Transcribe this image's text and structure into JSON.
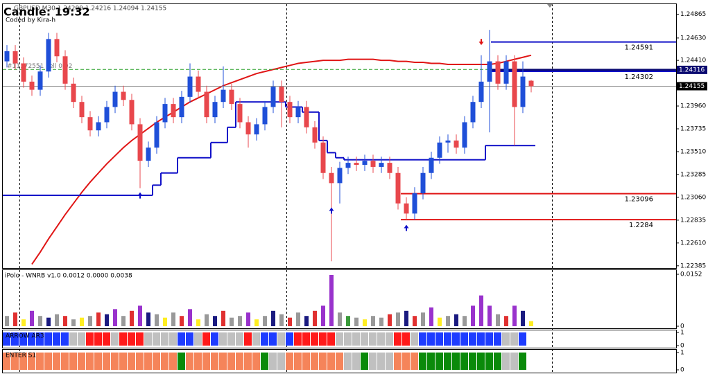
{
  "chart_data": [
    {
      "type": "candlestick",
      "title": "Candle: 19:32",
      "subtitle": "GBPUSD,M30 1.24209 1.24216 1.24094 1.24155",
      "annotations": [
        "Coded by Kira-h"
      ],
      "up_color": "#1f4fd8",
      "down_color": "#e8474c",
      "open": [
        1.244,
        1.245,
        1.2438,
        1.242,
        1.2412,
        1.243,
        1.2462,
        1.2445,
        1.2418,
        1.24,
        1.2385,
        1.2372,
        1.238,
        1.2395,
        1.241,
        1.2402,
        1.2378,
        1.2342,
        1.2355,
        1.238,
        1.2398,
        1.2385,
        1.2405,
        1.2425,
        1.241,
        1.2385,
        1.24,
        1.2412,
        1.2398,
        1.238,
        1.2368,
        1.2378,
        1.2395,
        1.2415,
        1.24,
        1.2385,
        1.2395,
        1.2375,
        1.236,
        1.233,
        1.232,
        1.2335,
        1.234,
        1.2338,
        1.2342,
        1.2336,
        1.234,
        1.233,
        1.23,
        1.229,
        1.231,
        1.233,
        1.2345,
        1.236,
        1.2362,
        1.2355,
        1.238,
        1.24,
        1.242,
        1.244,
        1.2418,
        1.244,
        1.2395,
        1.24209
      ],
      "high": [
        1.2456,
        1.2456,
        1.2444,
        1.2426,
        1.2436,
        1.2468,
        1.2468,
        1.2451,
        1.2424,
        1.2406,
        1.2391,
        1.2386,
        1.2401,
        1.2416,
        1.2416,
        1.2408,
        1.2384,
        1.2361,
        1.2386,
        1.2404,
        1.2404,
        1.2411,
        1.2438,
        1.2431,
        1.2416,
        1.2406,
        1.2435,
        1.2418,
        1.2404,
        1.2386,
        1.2384,
        1.2401,
        1.2421,
        1.2421,
        1.2406,
        1.2401,
        1.2401,
        1.2381,
        1.2366,
        1.2336,
        1.2341,
        1.2346,
        1.2346,
        1.2348,
        1.2348,
        1.2346,
        1.2346,
        1.2336,
        1.2306,
        1.2316,
        1.2336,
        1.2351,
        1.2366,
        1.2368,
        1.2368,
        1.2386,
        1.2406,
        1.2446,
        1.2471,
        1.2446,
        1.2446,
        1.2446,
        1.244,
        1.24216
      ],
      "low": [
        1.2434,
        1.2432,
        1.2414,
        1.2406,
        1.2406,
        1.2424,
        1.2439,
        1.2412,
        1.2394,
        1.2379,
        1.2366,
        1.2366,
        1.2374,
        1.2389,
        1.2396,
        1.2372,
        1.2315,
        1.2336,
        1.2349,
        1.2374,
        1.2379,
        1.2379,
        1.2399,
        1.2404,
        1.2379,
        1.2379,
        1.2394,
        1.2392,
        1.2374,
        1.2355,
        1.2362,
        1.2372,
        1.2389,
        1.2375,
        1.2379,
        1.2379,
        1.2369,
        1.2354,
        1.2324,
        1.2243,
        1.23,
        1.2329,
        1.2332,
        1.2332,
        1.233,
        1.233,
        1.2324,
        1.2294,
        1.2284,
        1.2284,
        1.2304,
        1.2324,
        1.2339,
        1.235,
        1.2349,
        1.2349,
        1.2374,
        1.2394,
        1.237,
        1.2412,
        1.2412,
        1.2357,
        1.2389,
        1.24094
      ],
      "close": [
        1.245,
        1.2438,
        1.242,
        1.2412,
        1.243,
        1.2462,
        1.2445,
        1.2418,
        1.24,
        1.2385,
        1.2372,
        1.238,
        1.2395,
        1.241,
        1.2402,
        1.2378,
        1.2342,
        1.2355,
        1.238,
        1.2398,
        1.2385,
        1.2405,
        1.2425,
        1.241,
        1.2385,
        1.24,
        1.2412,
        1.2398,
        1.238,
        1.2368,
        1.2378,
        1.2395,
        1.2415,
        1.24,
        1.2385,
        1.2395,
        1.2375,
        1.236,
        1.233,
        1.232,
        1.2335,
        1.234,
        1.2338,
        1.2342,
        1.2336,
        1.234,
        1.233,
        1.23,
        1.229,
        1.231,
        1.233,
        1.2345,
        1.236,
        1.2362,
        1.2355,
        1.238,
        1.24,
        1.242,
        1.244,
        1.2418,
        1.244,
        1.2395,
        1.2425,
        1.24155
      ],
      "ma": {
        "color": "#e01515",
        "values": [
          null,
          null,
          null,
          1.224,
          1.2252,
          1.2265,
          1.2277,
          1.2289,
          1.23,
          1.2311,
          1.2321,
          1.233,
          1.2339,
          1.2347,
          1.2355,
          1.2362,
          1.2368,
          1.2374,
          1.238,
          1.2385,
          1.239,
          1.2395,
          1.24,
          1.2404,
          1.2408,
          1.2412,
          1.2416,
          1.2419,
          1.2422,
          1.2425,
          1.2428,
          1.243,
          1.2432,
          1.2434,
          1.2436,
          1.2438,
          1.2439,
          1.244,
          1.2441,
          1.2441,
          1.2441,
          1.2442,
          1.2442,
          1.2442,
          1.2442,
          1.2441,
          1.2441,
          1.244,
          1.244,
          1.2439,
          1.2439,
          1.2438,
          1.2438,
          1.2437,
          1.2437,
          1.2437,
          1.2437,
          1.2437,
          1.2437,
          1.2438,
          1.244,
          1.2442,
          1.2444,
          1.2446
        ]
      },
      "stop": {
        "color": "#1010c8",
        "values": [
          1.2308,
          1.2308,
          1.2308,
          1.2308,
          1.2308,
          1.2308,
          1.2308,
          1.2308,
          1.2308,
          1.2308,
          1.2308,
          1.2308,
          1.2308,
          1.2308,
          1.2308,
          1.2308,
          1.2308,
          1.2308,
          1.2318,
          1.233,
          1.233,
          1.2345,
          1.2345,
          1.2345,
          1.2345,
          1.236,
          1.236,
          1.2375,
          1.24,
          1.24,
          1.24,
          1.24,
          1.24,
          1.24,
          1.2395,
          1.2395,
          1.239,
          1.239,
          1.2362,
          1.235,
          1.2345,
          1.2343,
          1.2343,
          1.2343,
          1.2343,
          1.2343,
          1.2343,
          1.2343,
          1.2343,
          1.2343,
          1.2343,
          1.2343,
          1.2343,
          1.2343,
          1.2343,
          1.2343,
          1.2343,
          1.2343,
          1.2357,
          1.2357,
          1.2357,
          1.2357,
          1.2357,
          1.2357
        ]
      },
      "buy_arrows": {
        "color": "#1010c8",
        "values": [
          null,
          null,
          null,
          null,
          null,
          null,
          null,
          null,
          null,
          null,
          null,
          null,
          null,
          null,
          null,
          null,
          1.2311,
          null,
          null,
          null,
          null,
          null,
          null,
          null,
          null,
          null,
          null,
          null,
          null,
          null,
          null,
          null,
          null,
          null,
          null,
          null,
          null,
          null,
          null,
          1.2296,
          null,
          null,
          null,
          null,
          null,
          null,
          null,
          null,
          1.2279,
          null,
          null,
          null,
          null,
          null,
          null,
          null,
          null,
          null,
          null,
          null,
          null,
          null,
          null,
          null
        ]
      },
      "sell_arrows": {
        "color": "#e01515",
        "values": [
          null,
          null,
          null,
          null,
          null,
          null,
          null,
          null,
          null,
          null,
          null,
          null,
          null,
          null,
          null,
          null,
          null,
          null,
          null,
          null,
          null,
          null,
          null,
          null,
          null,
          null,
          null,
          null,
          null,
          null,
          null,
          null,
          null,
          null,
          null,
          null,
          null,
          null,
          null,
          null,
          null,
          null,
          null,
          null,
          null,
          null,
          null,
          null,
          null,
          null,
          null,
          null,
          null,
          null,
          null,
          null,
          null,
          1.2456,
          null,
          null,
          null,
          null,
          null,
          null
        ]
      },
      "levels": [
        {
          "value": 1.24591,
          "label": "1.24591",
          "color": "#1010c8"
        },
        {
          "value": 1.24302,
          "label": "1.24302",
          "color": "#1010c8"
        },
        {
          "value": 1.23096,
          "label": "1.23096",
          "color": "#e01515"
        },
        {
          "value": 1.2284,
          "label": "1.2284",
          "color": "#e01515"
        }
      ],
      "order_line": {
        "value": 1.2432,
        "label": "#11172551 sell 0.02",
        "color": "#2aa02a"
      },
      "price_tags": [
        {
          "value": 1.24316,
          "label": "1.24316",
          "color": "#0a0a70"
        },
        {
          "value": 1.24155,
          "label": "1.24155",
          "color": "#000000"
        }
      ],
      "ylim": [
        1.2237,
        1.2495
      ],
      "yticks": [
        {
          "value": 1.24865,
          "label": "1.24865"
        },
        {
          "value": 1.2463,
          "label": "1.24630"
        },
        {
          "value": 1.2441,
          "label": "1.24410"
        },
        {
          "value": 1.2396,
          "label": "1.23960"
        },
        {
          "value": 1.23735,
          "label": "1.23735"
        },
        {
          "value": 1.2351,
          "label": "1.23510"
        },
        {
          "value": 1.23285,
          "label": "1.23285"
        },
        {
          "value": 1.2306,
          "label": "1.23060"
        },
        {
          "value": 1.22835,
          "label": "1.22835"
        },
        {
          "value": 1.2261,
          "label": "1.22610"
        },
        {
          "value": 1.22385,
          "label": "1.22385"
        }
      ],
      "grid": false
    },
    {
      "type": "bar",
      "title": "iPolo - WNRB v1.0 0.0012 0.0000 0.0038",
      "values": [
        0.003,
        0.004,
        0.002,
        0.0045,
        0.003,
        0.0025,
        0.0035,
        0.003,
        0.002,
        0.0025,
        0.003,
        0.004,
        0.0035,
        0.005,
        0.003,
        0.0045,
        0.006,
        0.004,
        0.0035,
        0.0025,
        0.004,
        0.003,
        0.005,
        0.002,
        0.0035,
        0.003,
        0.0045,
        0.0025,
        0.003,
        0.004,
        0.002,
        0.003,
        0.0045,
        0.0035,
        0.0025,
        0.004,
        0.003,
        0.0045,
        0.006,
        0.015,
        0.004,
        0.003,
        0.0025,
        0.002,
        0.003,
        0.0025,
        0.0035,
        0.004,
        0.0045,
        0.003,
        0.004,
        0.0055,
        0.0025,
        0.003,
        0.0035,
        0.003,
        0.006,
        0.009,
        0.006,
        0.0035,
        0.003,
        0.006,
        0.0045,
        0.0015
      ],
      "colors": [
        "#999999",
        "#e03030",
        "#ffee22",
        "#9932cc",
        "#999999",
        "#1a1a80",
        "#999999",
        "#e03030",
        "#999999",
        "#ffee22",
        "#999999",
        "#e03030",
        "#1a1a80",
        "#9932cc",
        "#999999",
        "#e03030",
        "#9932cc",
        "#1a1a80",
        "#999999",
        "#ffee22",
        "#999999",
        "#e03030",
        "#9932cc",
        "#ffee22",
        "#999999",
        "#1a1a80",
        "#e03030",
        "#999999",
        "#999999",
        "#9932cc",
        "#ffee22",
        "#999999",
        "#1a1a80",
        "#999999",
        "#e03030",
        "#999999",
        "#1a1a80",
        "#e03030",
        "#9932cc",
        "#9932cc",
        "#999999",
        "#3a9a3a",
        "#999999",
        "#ffee22",
        "#999999",
        "#999999",
        "#e03030",
        "#999999",
        "#1a1a80",
        "#e03030",
        "#999999",
        "#9932cc",
        "#ffee22",
        "#999999",
        "#1a1a80",
        "#999999",
        "#9932cc",
        "#9932cc",
        "#9932cc",
        "#999999",
        "#e03030",
        "#9932cc",
        "#1a1a80",
        "#ffee22"
      ],
      "ylim": [
        0,
        0.0152
      ],
      "yticks": [
        {
          "value": 0.0152,
          "label": "0.0152"
        },
        0
      ]
    },
    {
      "type": "blocks",
      "title": "ARROW AR3",
      "values": [
        1,
        1,
        1,
        1,
        1,
        1,
        1,
        1,
        1,
        1,
        1,
        1,
        1,
        1,
        1,
        1,
        1,
        1,
        1,
        1,
        1,
        1,
        1,
        1,
        1,
        1,
        1,
        1,
        1,
        1,
        1,
        1,
        1,
        1,
        1,
        1,
        1,
        1,
        1,
        1,
        1,
        1,
        1,
        1,
        1,
        1,
        1,
        1,
        1,
        1,
        1,
        1,
        1,
        1,
        1,
        1,
        1,
        1,
        1,
        1,
        1,
        1,
        1,
        null
      ],
      "colors": [
        "#1e3cff",
        "#1e3cff",
        "#1e3cff",
        "#1e3cff",
        "#1e3cff",
        "#1e3cff",
        "#1e3cff",
        "#1e3cff",
        "#c0c0c0",
        "#c0c0c0",
        "#ff1a1a",
        "#ff1a1a",
        "#ff1a1a",
        "#c0c0c0",
        "#ff1a1a",
        "#ff1a1a",
        "#ff1a1a",
        "#c0c0c0",
        "#c0c0c0",
        "#c0c0c0",
        "#c0c0c0",
        "#1e3cff",
        "#1e3cff",
        "#c0c0c0",
        "#ff1a1a",
        "#1e3cff",
        "#c0c0c0",
        "#c0c0c0",
        "#c0c0c0",
        "#ff1a1a",
        "#c0c0c0",
        "#1e3cff",
        "#1e3cff",
        "#c0c0c0",
        "#1e3cff",
        "#ff1a1a",
        "#ff1a1a",
        "#ff1a1a",
        "#ff1a1a",
        "#ff1a1a",
        "#c0c0c0",
        "#c0c0c0",
        "#c0c0c0",
        "#c0c0c0",
        "#c0c0c0",
        "#c0c0c0",
        "#c0c0c0",
        "#ff1a1a",
        "#ff1a1a",
        "#c0c0c0",
        "#1e3cff",
        "#1e3cff",
        "#1e3cff",
        "#1e3cff",
        "#1e3cff",
        "#1e3cff",
        "#1e3cff",
        "#1e3cff",
        "#1e3cff",
        "#1e3cff",
        "#c0c0c0",
        "#c0c0c0",
        "#1e3cff",
        null
      ],
      "ylim": [
        0,
        1
      ],
      "yticks": [
        1,
        0
      ]
    },
    {
      "type": "blocks",
      "title": "ENTER S1",
      "values": [
        1,
        1,
        1,
        1,
        1,
        1,
        1,
        1,
        1,
        1,
        1,
        1,
        1,
        1,
        1,
        1,
        1,
        1,
        1,
        1,
        1,
        1,
        1,
        1,
        1,
        1,
        1,
        1,
        1,
        1,
        1,
        1,
        1,
        1,
        1,
        1,
        1,
        1,
        1,
        1,
        1,
        1,
        1,
        1,
        1,
        1,
        1,
        1,
        1,
        1,
        1,
        1,
        1,
        1,
        1,
        1,
        1,
        1,
        1,
        1,
        1,
        1,
        1,
        null
      ],
      "colors": [
        "#f5845a",
        "#f5845a",
        "#f5845a",
        "#f5845a",
        "#f5845a",
        "#f5845a",
        "#f5845a",
        "#f5845a",
        "#f5845a",
        "#f5845a",
        "#f5845a",
        "#f5845a",
        "#f5845a",
        "#f5845a",
        "#f5845a",
        "#f5845a",
        "#f5845a",
        "#f5845a",
        "#f5845a",
        "#f5845a",
        "#f5845a",
        "#0a8a0a",
        "#f5845a",
        "#f5845a",
        "#f5845a",
        "#f5845a",
        "#f5845a",
        "#f5845a",
        "#f5845a",
        "#f5845a",
        "#f5845a",
        "#0a8a0a",
        "#c0c0c0",
        "#c0c0c0",
        "#f5845a",
        "#f5845a",
        "#f5845a",
        "#f5845a",
        "#f5845a",
        "#f5845a",
        "#f5845a",
        "#c0c0c0",
        "#c0c0c0",
        "#0a8a0a",
        "#c0c0c0",
        "#c0c0c0",
        "#c0c0c0",
        "#f5845a",
        "#f5845a",
        "#f5845a",
        "#0a8a0a",
        "#0a8a0a",
        "#0a8a0a",
        "#0a8a0a",
        "#0a8a0a",
        "#0a8a0a",
        "#0a8a0a",
        "#0a8a0a",
        "#0a8a0a",
        "#0a8a0a",
        "#c0c0c0",
        "#c0c0c0",
        "#0a8a0a",
        null
      ],
      "ylim": [
        0,
        1
      ],
      "yticks": [
        1,
        0
      ]
    }
  ]
}
